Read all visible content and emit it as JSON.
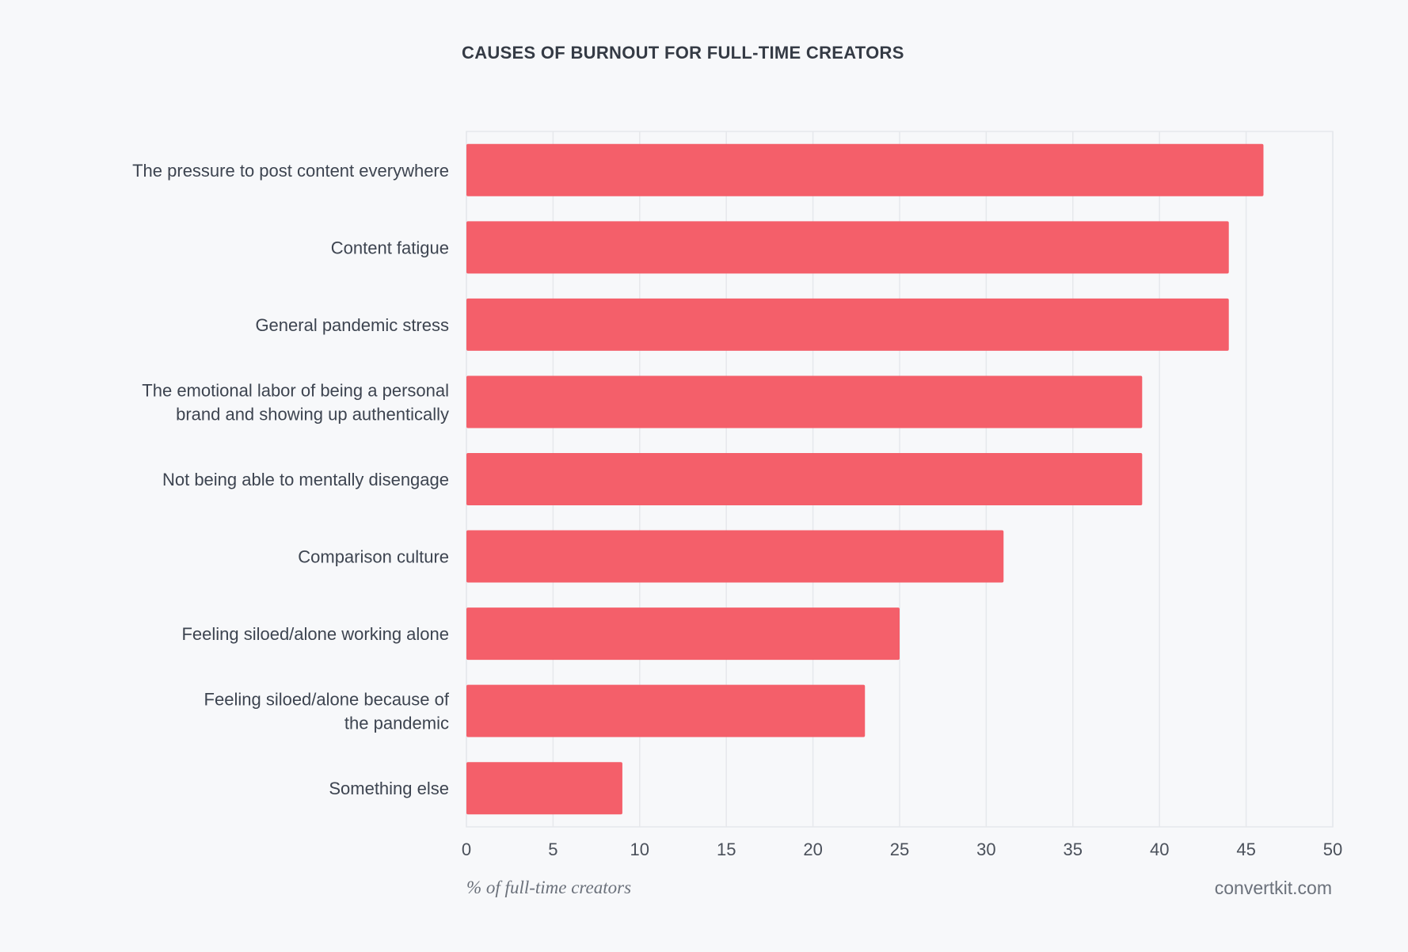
{
  "chart_data": {
    "type": "bar",
    "orientation": "horizontal",
    "title": "CAUSES OF BURNOUT FOR FULL-TIME CREATORS",
    "xlabel": "% of full-time creators",
    "ylabel": "",
    "source": "convertkit.com",
    "xlim": [
      0,
      50
    ],
    "xticks": [
      "0",
      "5",
      "10",
      "15",
      "20",
      "25",
      "30",
      "35",
      "40",
      "45",
      "50"
    ],
    "grid": true,
    "bar_color": "#f45f6a",
    "categories": [
      [
        "The pressure to post content everywhere"
      ],
      [
        "Content fatigue"
      ],
      [
        "General pandemic stress"
      ],
      [
        "The emotional labor of being a personal",
        "brand and showing up authentically"
      ],
      [
        "Not being able to mentally disengage"
      ],
      [
        "Comparison culture"
      ],
      [
        "Feeling siloed/alone working alone"
      ],
      [
        "Feeling siloed/alone because of",
        "the pandemic"
      ],
      [
        "Something else"
      ]
    ],
    "values": [
      46,
      44,
      44,
      39,
      39,
      31,
      25,
      23,
      9
    ]
  }
}
